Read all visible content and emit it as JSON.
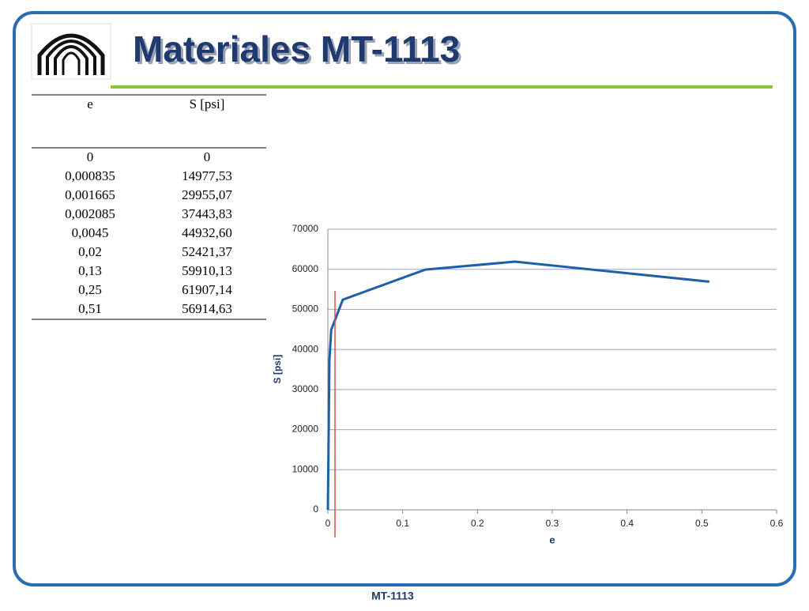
{
  "header": {
    "title": "Materiales MT-1113"
  },
  "table": {
    "header": [
      "e",
      "S [psi]"
    ],
    "rows": [
      [
        "0",
        "0"
      ],
      [
        "0,000835",
        "14977,53"
      ],
      [
        "0,001665",
        "29955,07"
      ],
      [
        "0,002085",
        "37443,83"
      ],
      [
        "0,0045",
        "44932,60"
      ],
      [
        "0,02",
        "52421,37"
      ],
      [
        "0,13",
        "59910,13"
      ],
      [
        "0,25",
        "61907,14"
      ],
      [
        "0,51",
        "56914,63"
      ]
    ]
  },
  "chart_data": {
    "type": "line",
    "x_label": "e",
    "y_label": "S [psi]",
    "x": [
      0,
      0.000835,
      0.001665,
      0.002085,
      0.0045,
      0.02,
      0.13,
      0.25,
      0.51
    ],
    "values": [
      0,
      14977.53,
      29955.07,
      37443.83,
      44932.6,
      52421.37,
      59910.13,
      61907.14,
      56914.63
    ],
    "color": "#1f5fa8",
    "xlim": [
      0,
      0.6
    ],
    "xticks": [
      0,
      0.1,
      0.2,
      0.3,
      0.4,
      0.5,
      0.6
    ],
    "ylim": [
      0,
      70000
    ],
    "yticks": [
      0,
      10000,
      20000,
      30000,
      40000,
      50000,
      60000,
      70000
    ],
    "grid": true
  },
  "footer": {
    "text": "MT-1113"
  }
}
